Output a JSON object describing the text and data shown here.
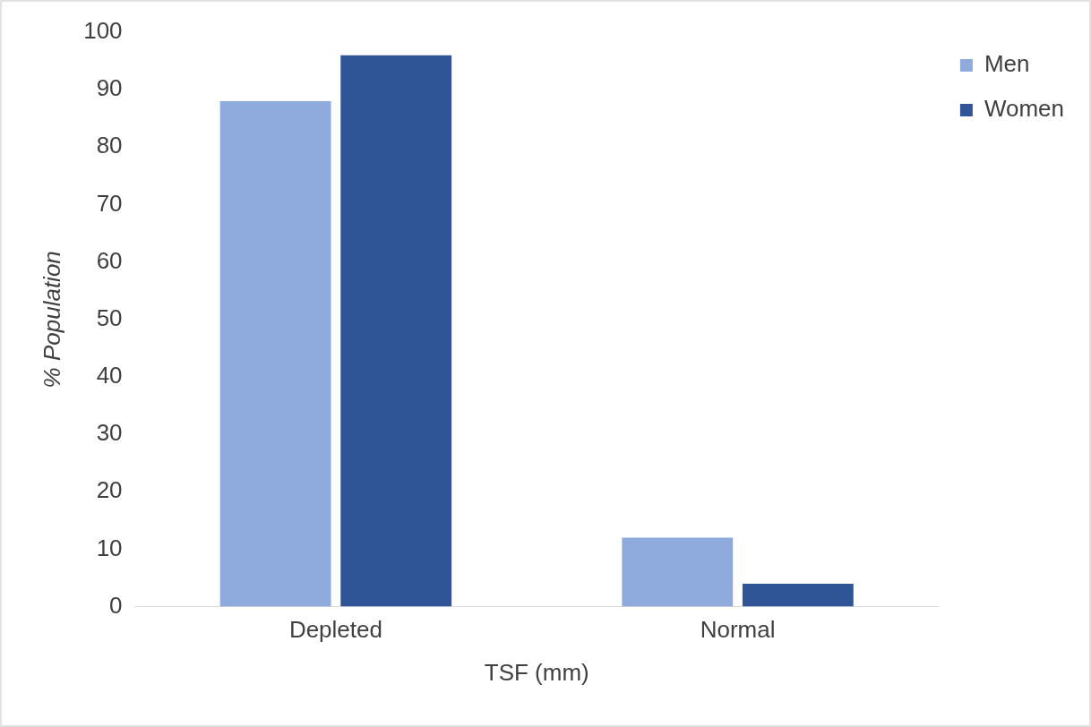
{
  "chart_data": {
    "type": "bar",
    "xlabel": "TSF (mm)",
    "ylabel": "% Population",
    "categories": [
      "Depleted",
      "Normal"
    ],
    "series": [
      {
        "name": "Men",
        "color": "#8faadc",
        "values": [
          88,
          12
        ]
      },
      {
        "name": "Women",
        "color": "#2f5597",
        "values": [
          96,
          4
        ]
      }
    ],
    "ylim": [
      0,
      100
    ],
    "yticks": [
      0,
      10,
      20,
      30,
      40,
      50,
      60,
      70,
      80,
      90,
      100
    ],
    "grid": false,
    "legend": "top right"
  }
}
